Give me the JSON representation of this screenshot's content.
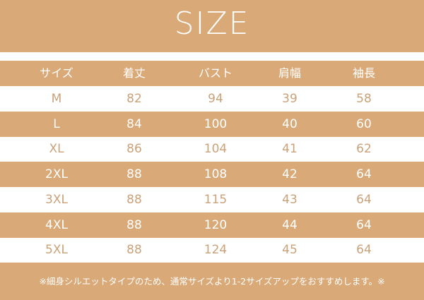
{
  "title": "SIZE",
  "table": {
    "headers": [
      "サイズ",
      "着丈",
      "バスト",
      "肩幅",
      "袖長"
    ],
    "rows": [
      [
        "M",
        "82",
        "94",
        "39",
        "58"
      ],
      [
        "L",
        "84",
        "100",
        "40",
        "60"
      ],
      [
        "XL",
        "86",
        "104",
        "41",
        "62"
      ],
      [
        "2XL",
        "88",
        "108",
        "42",
        "64"
      ],
      [
        "3XL",
        "88",
        "115",
        "43",
        "64"
      ],
      [
        "4XL",
        "88",
        "120",
        "44",
        "64"
      ],
      [
        "5XL",
        "88",
        "124",
        "45",
        "64"
      ]
    ]
  },
  "note": "※細身シルエットタイプのため、通常サイズより1-2サイズアップをおすすめします。※",
  "colors": {
    "accent": "#d9a978",
    "text_light": "#c9a27a"
  }
}
